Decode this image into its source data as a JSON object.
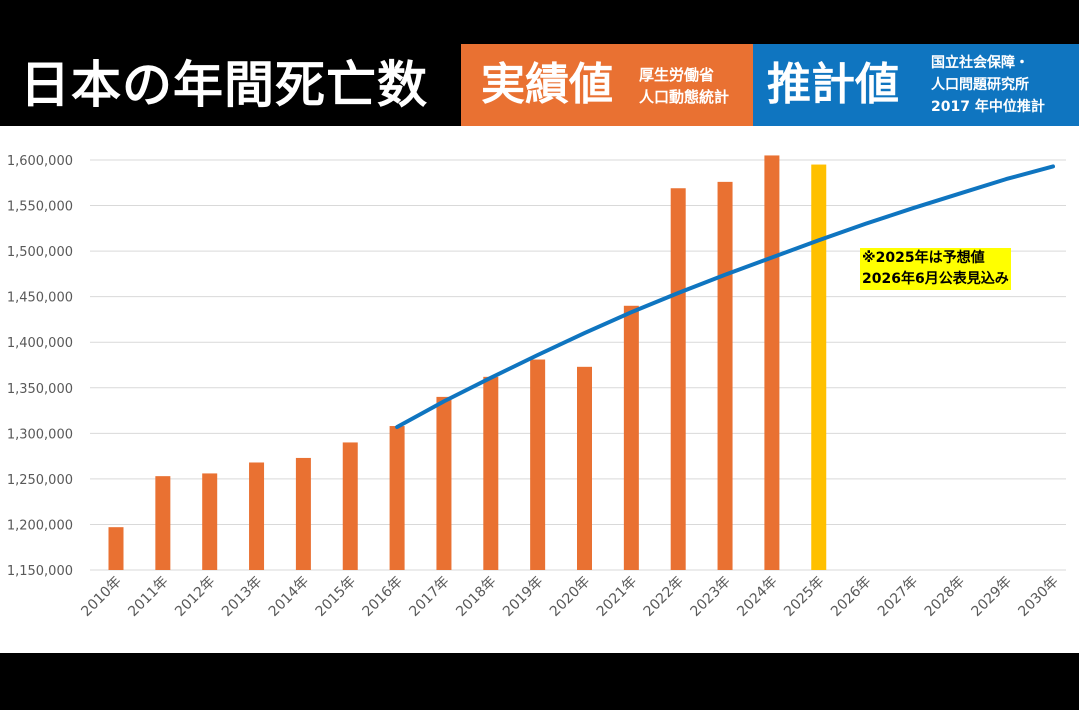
{
  "header": {
    "title": "日本の年間死亡数",
    "actual_label": "実績値",
    "actual_source_line1": "厚生労働省",
    "actual_source_line2": "人口動態統計",
    "projection_label": "推計値",
    "projection_source_line1": "国立社会保障・",
    "projection_source_line2": "人口問題研究所",
    "projection_source_line3": "2017 年中位推計"
  },
  "annotation": {
    "line1": "※2025年は予想値",
    "line2": "2026年6月公表見込み"
  },
  "colors": {
    "actual": "#e97132",
    "estimate_bar": "#ffc000",
    "projection_line": "#0f75c0",
    "title_bg": "#000000",
    "note_bg": "#ffff00"
  },
  "chart_data": {
    "type": "bar",
    "categories": [
      "2010年",
      "2011年",
      "2012年",
      "2013年",
      "2014年",
      "2015年",
      "2016年",
      "2017年",
      "2018年",
      "2019年",
      "2020年",
      "2021年",
      "2022年",
      "2023年",
      "2024年",
      "2025年",
      "2026年",
      "2027年",
      "2028年",
      "2029年",
      "2030年"
    ],
    "ylim": [
      1150000,
      1600000
    ],
    "yticks": [
      1150000,
      1200000,
      1250000,
      1300000,
      1350000,
      1400000,
      1450000,
      1500000,
      1550000,
      1600000
    ],
    "yticklabels": [
      "1,150,000",
      "1,200,000",
      "1,250,000",
      "1,300,000",
      "1,350,000",
      "1,400,000",
      "1,450,000",
      "1,500,000",
      "1,550,000",
      "1,600,000"
    ],
    "grid": true,
    "series": [
      {
        "name": "実績値",
        "type": "bar",
        "values": [
          1197000,
          1253000,
          1256000,
          1268000,
          1273000,
          1290000,
          1308000,
          1340000,
          1362000,
          1381000,
          1373000,
          1440000,
          1569000,
          1576000,
          1605000,
          null,
          null,
          null,
          null,
          null,
          null
        ]
      },
      {
        "name": "※2025年は予想値",
        "type": "bar",
        "values": [
          null,
          null,
          null,
          null,
          null,
          null,
          null,
          null,
          null,
          null,
          null,
          null,
          null,
          null,
          null,
          1595000,
          null,
          null,
          null,
          null,
          null
        ]
      },
      {
        "name": "推計値",
        "type": "line",
        "values": [
          null,
          null,
          null,
          null,
          null,
          null,
          1307000,
          1335000,
          1361000,
          1386000,
          1410000,
          1433000,
          1454000,
          1474000,
          1493000,
          1512000,
          1530000,
          1547000,
          1563000,
          1579000,
          1593000
        ]
      }
    ]
  }
}
